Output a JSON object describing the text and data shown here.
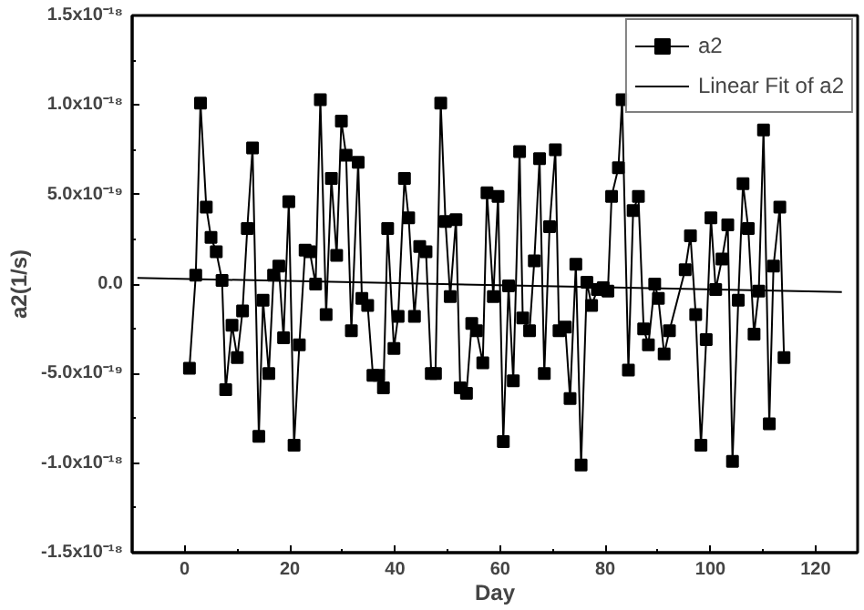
{
  "chart_data": {
    "type": "line",
    "xlabel": "Day",
    "ylabel": "a2(1/s)",
    "xlim": [
      -10,
      128
    ],
    "xticks": [
      0,
      20,
      40,
      60,
      80,
      100,
      120
    ],
    "ylim": [
      -1.5e-18,
      1.5e-18
    ],
    "yticks": [
      {
        "value": -1.5e-18,
        "label": "-1.5x10⁻¹⁸"
      },
      {
        "value": -1e-18,
        "label": "-1.0x10⁻¹⁸"
      },
      {
        "value": -5e-19,
        "label": "-5.0x10⁻¹⁹"
      },
      {
        "value": 0,
        "label": "0.0"
      },
      {
        "value": 5e-19,
        "label": "5.0x10⁻¹⁹"
      },
      {
        "value": 1e-18,
        "label": "1.0x10⁻¹⁸"
      },
      {
        "value": 1.5e-18,
        "label": "1.5x10⁻¹⁸"
      }
    ],
    "grid": false,
    "legend": "top right",
    "series": [
      {
        "name": "a2",
        "color": "#000000",
        "marker": "square",
        "line_style": "solid",
        "x": [
          0.9,
          2.1,
          3.0,
          4.1,
          5.0,
          6.0,
          7.1,
          7.8,
          9.0,
          10,
          11,
          11.9,
          12.9,
          14.1,
          14.9,
          16,
          16.9,
          17.9,
          18.8,
          19.8,
          20.8,
          21.8,
          22.9,
          23.8,
          24.9,
          25.8,
          26.9,
          27.9,
          28.9,
          29.8,
          30.7,
          31.7,
          33.0,
          33.7,
          34.8,
          35.8,
          36.9,
          37.8,
          38.6,
          39.8,
          40.6,
          41.8,
          42.6,
          43.7,
          44.7,
          45.9,
          46.9,
          47.7,
          48.7,
          49.6,
          50.5,
          51.6,
          52.4,
          53.6,
          54.6,
          55.5,
          56.7,
          57.5,
          58.7,
          59.6,
          60.6,
          61.6,
          62.5,
          63.7,
          64.3,
          65.6,
          66.5,
          67.5,
          68.4,
          69.4,
          70.5,
          71.2,
          72.4,
          73.3,
          74.4,
          75.4,
          76.5,
          77.4,
          78.5,
          79.6,
          80.5,
          81.2,
          82.5,
          83.2,
          84.4,
          85.3,
          86.3,
          87.3,
          88.2,
          89.4,
          90.1,
          91.2,
          92.2,
          95.2,
          96.2,
          97.2,
          98.2,
          99.2,
          100.1,
          101.0,
          102.2,
          103.3,
          104.2,
          105.3,
          106.2,
          107.2,
          108.3,
          109.2,
          110.1,
          111.2,
          112.0,
          113.2,
          114.0
        ],
        "values": [
          -4.7e-19,
          5e-20,
          1.01e-18,
          4.3e-19,
          2.6e-19,
          1.8e-19,
          2e-20,
          -5.9e-19,
          -2.3e-19,
          -4.1e-19,
          -1.5e-19,
          3.1e-19,
          7.6e-19,
          -8.5e-19,
          -9e-20,
          -5e-19,
          5e-20,
          1e-19,
          -3e-19,
          4.6e-19,
          -9e-19,
          -3.4e-19,
          1.9e-19,
          1.8e-19,
          0.0,
          1.03e-18,
          -1.7e-19,
          5.9e-19,
          1.6e-19,
          9.1e-19,
          7.2e-19,
          -2.6e-19,
          6.8e-19,
          -8e-20,
          -1.2e-19,
          -5.1e-19,
          -5.1e-19,
          -5.8e-19,
          3.1e-19,
          -3.6e-19,
          -1.8e-19,
          5.9e-19,
          3.7e-19,
          -1.8e-19,
          2.1e-19,
          1.8e-19,
          -5e-19,
          -5e-19,
          1.01e-18,
          3.5e-19,
          -7e-20,
          3.6e-19,
          -5.8e-19,
          -6.1e-19,
          -2.2e-19,
          -2.6e-19,
          -4.4e-19,
          5.1e-19,
          -7e-20,
          4.9e-19,
          -8.8e-19,
          -1e-20,
          -5.4e-19,
          7.4e-19,
          -1.9e-19,
          -2.6e-19,
          1.3e-19,
          7e-19,
          -5e-19,
          3.2e-19,
          7.5e-19,
          -2.6e-19,
          -2.4e-19,
          -6.4e-19,
          1.1e-19,
          -1.01e-18,
          1e-20,
          -1.2e-19,
          -3e-20,
          -2e-20,
          -4e-20,
          4.9e-19,
          6.5e-19,
          1.03e-18,
          -4.8e-19,
          4.1e-19,
          4.9e-19,
          -2.5e-19,
          -3.4e-19,
          0.0,
          -8e-20,
          -3.9e-19,
          -2.6e-19,
          8e-20,
          2.7e-19,
          -1.7e-19,
          -9e-19,
          -3.1e-19,
          3.7e-19,
          -3e-20,
          1.4e-19,
          3.3e-19,
          -9.9e-19,
          -9e-20,
          5.6e-19,
          3.1e-19,
          -2.8e-19,
          -4e-20,
          8.6e-19,
          -7.8e-19,
          1e-19,
          4.3e-19,
          -4.1e-19
        ]
      },
      {
        "name": "Linear Fit of a2",
        "color": "#000000",
        "marker": "none",
        "line_style": "solid",
        "x": [
          -9,
          125
        ],
        "values": [
          3.4e-20,
          -4.4e-20
        ]
      }
    ]
  }
}
